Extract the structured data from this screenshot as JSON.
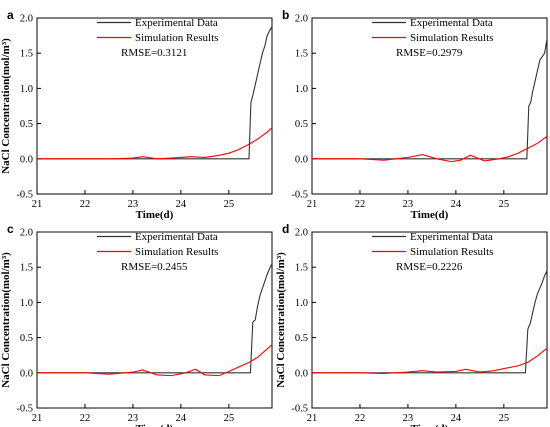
{
  "chart_data": [
    {
      "type": "line",
      "panel": "a",
      "xlabel": "Time(d)",
      "ylabel": "NaCl Concentration(mol/m³)",
      "xlim": [
        21,
        25.9
      ],
      "ylim": [
        -0.5,
        2.0
      ],
      "xticks": [
        "21",
        "22",
        "23",
        "24",
        "25"
      ],
      "yticks": [
        "-0.5",
        "0.0",
        "0.5",
        "1.0",
        "1.5",
        "2.0"
      ],
      "annotation": "RMSE=0.3121",
      "legend_position": "top-right",
      "series": [
        {
          "name": "Experimental Data",
          "color": "#333333",
          "x": [
            21.0,
            22.0,
            23.0,
            24.0,
            25.0,
            25.42,
            25.46,
            25.5,
            25.55,
            25.6,
            25.65,
            25.7,
            25.75,
            25.8,
            25.85,
            25.9
          ],
          "y": [
            0.0,
            0.0,
            0.0,
            0.0,
            0.0,
            0.0,
            0.8,
            0.9,
            1.05,
            1.2,
            1.35,
            1.5,
            1.6,
            1.75,
            1.82,
            1.88
          ]
        },
        {
          "name": "Simulation Results",
          "color": "#ff0000",
          "x": [
            21.0,
            22.0,
            22.5,
            23.0,
            23.2,
            23.5,
            23.8,
            24.2,
            24.5,
            24.8,
            25.0,
            25.2,
            25.4,
            25.6,
            25.8,
            25.9
          ],
          "y": [
            0.0,
            0.0,
            0.0,
            0.01,
            0.03,
            0.0,
            0.01,
            0.03,
            0.02,
            0.05,
            0.08,
            0.13,
            0.2,
            0.28,
            0.38,
            0.44
          ]
        }
      ]
    },
    {
      "type": "line",
      "panel": "b",
      "xlabel": "Time(d)",
      "ylabel": "",
      "xlim": [
        21,
        25.9
      ],
      "ylim": [
        -0.5,
        2.0
      ],
      "xticks": [
        "21",
        "22",
        "23",
        "24",
        "25"
      ],
      "yticks": [
        "-0.5",
        "0.0",
        "0.5",
        "1.0",
        "1.5",
        "2.0"
      ],
      "annotation": "RMSE=0.2979",
      "legend_position": "top-right",
      "series": [
        {
          "name": "Experimental Data",
          "color": "#333333",
          "x": [
            21.0,
            22.0,
            23.0,
            24.0,
            25.0,
            25.48,
            25.52,
            25.56,
            25.6,
            25.65,
            25.7,
            25.75,
            25.8,
            25.85,
            25.9
          ],
          "y": [
            0.0,
            0.0,
            0.0,
            0.0,
            0.0,
            0.0,
            0.75,
            0.8,
            0.95,
            1.1,
            1.25,
            1.4,
            1.45,
            1.5,
            1.7
          ]
        },
        {
          "name": "Simulation Results",
          "color": "#ff0000",
          "x": [
            21.0,
            22.0,
            22.5,
            23.0,
            23.3,
            23.6,
            23.9,
            24.1,
            24.3,
            24.6,
            24.9,
            25.1,
            25.3,
            25.5,
            25.7,
            25.9
          ],
          "y": [
            0.0,
            0.0,
            -0.02,
            0.02,
            0.06,
            0.0,
            -0.04,
            -0.02,
            0.05,
            -0.03,
            0.0,
            0.03,
            0.08,
            0.15,
            0.22,
            0.32
          ]
        }
      ]
    },
    {
      "type": "line",
      "panel": "c",
      "xlabel": "Time(d)",
      "ylabel": "NaCl Concentration(mol/m³)",
      "xlim": [
        21,
        25.9
      ],
      "ylim": [
        -0.5,
        2.0
      ],
      "xticks": [
        "21",
        "22",
        "23",
        "24",
        "25"
      ],
      "yticks": [
        "-0.5",
        "0.0",
        "0.5",
        "1.0",
        "1.5",
        "2.0"
      ],
      "annotation": "RMSE=0.2455",
      "legend_position": "top-right",
      "series": [
        {
          "name": "Experimental Data",
          "color": "#333333",
          "x": [
            21.0,
            22.0,
            23.0,
            24.0,
            25.0,
            25.45,
            25.5,
            25.55,
            25.6,
            25.65,
            25.7,
            25.75,
            25.8,
            25.85,
            25.9
          ],
          "y": [
            0.0,
            0.0,
            0.0,
            0.0,
            0.0,
            0.0,
            0.72,
            0.75,
            0.95,
            1.1,
            1.2,
            1.3,
            1.4,
            1.48,
            1.55
          ]
        },
        {
          "name": "Simulation Results",
          "color": "#ff0000",
          "x": [
            21.0,
            22.0,
            22.5,
            23.0,
            23.2,
            23.5,
            23.8,
            24.1,
            24.3,
            24.5,
            24.8,
            25.0,
            25.2,
            25.4,
            25.6,
            25.9
          ],
          "y": [
            0.0,
            0.0,
            -0.02,
            0.01,
            0.04,
            -0.03,
            -0.04,
            0.0,
            0.05,
            -0.03,
            -0.04,
            0.02,
            0.08,
            0.14,
            0.22,
            0.4
          ]
        }
      ]
    },
    {
      "type": "line",
      "panel": "d",
      "xlabel": "Time(d)",
      "ylabel": "NaCl Concentration(mol/m³)",
      "xlim": [
        21,
        25.9
      ],
      "ylim": [
        -0.5,
        2.0
      ],
      "xticks": [
        "21",
        "22",
        "23",
        "24",
        "25"
      ],
      "yticks": [
        "-0.5",
        "0.0",
        "0.5",
        "1.0",
        "1.5",
        "2.0"
      ],
      "annotation": "RMSE=0.2226",
      "legend_position": "top-right",
      "series": [
        {
          "name": "Experimental Data",
          "color": "#333333",
          "x": [
            21.0,
            22.0,
            23.0,
            24.0,
            25.0,
            25.45,
            25.5,
            25.55,
            25.6,
            25.65,
            25.7,
            25.75,
            25.8,
            25.85,
            25.9
          ],
          "y": [
            0.0,
            0.0,
            0.0,
            0.0,
            0.0,
            0.0,
            0.62,
            0.7,
            0.85,
            1.0,
            1.12,
            1.2,
            1.28,
            1.38,
            1.45
          ]
        },
        {
          "name": "Simulation Results",
          "color": "#ff0000",
          "x": [
            21.0,
            22.0,
            22.5,
            23.0,
            23.3,
            23.6,
            24.0,
            24.2,
            24.5,
            24.8,
            25.0,
            25.3,
            25.5,
            25.7,
            25.9
          ],
          "y": [
            0.0,
            0.0,
            -0.01,
            0.01,
            0.03,
            0.01,
            0.02,
            0.05,
            0.01,
            0.03,
            0.06,
            0.1,
            0.15,
            0.24,
            0.35
          ]
        }
      ]
    }
  ]
}
